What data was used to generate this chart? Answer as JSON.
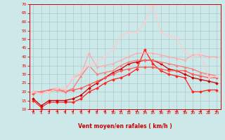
{
  "x": [
    0,
    1,
    2,
    3,
    4,
    5,
    6,
    7,
    8,
    9,
    10,
    11,
    12,
    13,
    14,
    15,
    16,
    17,
    18,
    19,
    20,
    21,
    22,
    23
  ],
  "series": [
    {
      "color": "#ff2020",
      "values": [
        15,
        11,
        14,
        14,
        14,
        14,
        16,
        20,
        22,
        25,
        27,
        28,
        30,
        33,
        44,
        36,
        32,
        30,
        29,
        28,
        20,
        20,
        21,
        21
      ],
      "marker": "D",
      "lw": 0.9,
      "ms": 2.0
    },
    {
      "color": "#cc0000",
      "values": [
        16,
        12,
        15,
        15,
        15,
        16,
        18,
        22,
        25,
        28,
        31,
        33,
        36,
        37,
        38,
        38,
        36,
        33,
        32,
        30,
        28,
        27,
        26,
        25
      ],
      "marker": "D",
      "lw": 0.9,
      "ms": 2.0
    },
    {
      "color": "#ff5555",
      "values": [
        19,
        20,
        21,
        21,
        20,
        21,
        22,
        24,
        26,
        28,
        30,
        32,
        33,
        34,
        34,
        34,
        33,
        32,
        32,
        32,
        30,
        29,
        28,
        28
      ],
      "marker": "D",
      "lw": 0.9,
      "ms": 2.0
    },
    {
      "color": "#ff7777",
      "values": [
        20,
        20,
        21,
        22,
        20,
        22,
        29,
        35,
        30,
        31,
        32,
        35,
        37,
        38,
        38,
        38,
        37,
        36,
        35,
        34,
        33,
        31,
        30,
        29
      ],
      "marker": "^",
      "lw": 0.9,
      "ms": 2.0
    },
    {
      "color": "#ffaaaa",
      "values": [
        20,
        19,
        20,
        21,
        21,
        28,
        30,
        42,
        34,
        35,
        36,
        38,
        40,
        42,
        42,
        42,
        41,
        40,
        39,
        38,
        41,
        41,
        40,
        40
      ],
      "marker": "^",
      "lw": 0.9,
      "ms": 2.0
    },
    {
      "color": "#ffcccc",
      "values": [
        20,
        19,
        20,
        22,
        22,
        28,
        32,
        35,
        37,
        40,
        44,
        52,
        54,
        54,
        60,
        70,
        54,
        52,
        51,
        43,
        40,
        42,
        28,
        29
      ],
      "marker": "^",
      "lw": 0.9,
      "ms": 2.0
    }
  ],
  "xlabel": "Vent moyen/en rafales ( km/h )",
  "ylim": [
    10,
    70
  ],
  "xlim": [
    -0.5,
    23.5
  ],
  "yticks": [
    10,
    15,
    20,
    25,
    30,
    35,
    40,
    45,
    50,
    55,
    60,
    65,
    70
  ],
  "xticks": [
    0,
    1,
    2,
    3,
    4,
    5,
    6,
    7,
    8,
    9,
    10,
    11,
    12,
    13,
    14,
    15,
    16,
    17,
    18,
    19,
    20,
    21,
    22,
    23
  ],
  "bg_color": "#cce8e8",
  "grid_color": "#aacccc",
  "text_color": "#cc0000",
  "tick_color": "#dd0000",
  "spine_color": "#cc0000"
}
